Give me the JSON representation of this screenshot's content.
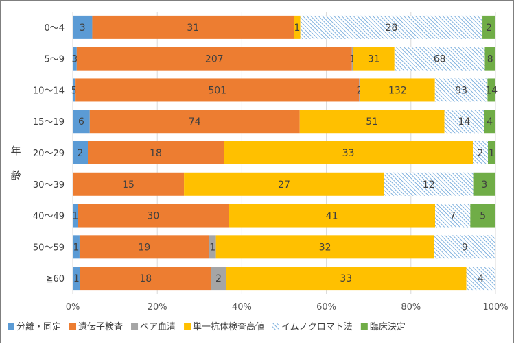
{
  "chart_data": {
    "type": "bar",
    "orientation": "horizontal",
    "stacked": "percent",
    "title": "",
    "ylabel": "年齢",
    "xlabel": "",
    "xlim": [
      0,
      100
    ],
    "xticks": [
      "0%",
      "20%",
      "40%",
      "60%",
      "80%",
      "100%"
    ],
    "categories": [
      "0〜4",
      "5〜9",
      "10〜14",
      "15〜19",
      "20〜29",
      "30〜39",
      "40〜49",
      "50〜59",
      "≧60"
    ],
    "legend_position": "bottom",
    "gridlines": "vertical",
    "series": [
      {
        "name": "分離・同定",
        "color": "#5b9bd5",
        "pattern": "solid",
        "values": [
          3,
          3,
          5,
          6,
          2,
          0,
          1,
          1,
          1
        ]
      },
      {
        "name": "遺伝子検査",
        "color": "#ed7d31",
        "pattern": "solid",
        "values": [
          31,
          207,
          501,
          74,
          18,
          15,
          30,
          19,
          18
        ]
      },
      {
        "name": "ペア血清",
        "color": "#a5a5a5",
        "pattern": "solid",
        "values": [
          0,
          1,
          2,
          0,
          0,
          0,
          0,
          1,
          2
        ]
      },
      {
        "name": "単一抗体検査高値",
        "color": "#ffc000",
        "pattern": "solid",
        "values": [
          1,
          31,
          132,
          51,
          33,
          27,
          41,
          32,
          33
        ]
      },
      {
        "name": "イムノクロマト法",
        "color": "#5b9bd5",
        "pattern": "hatch",
        "values": [
          28,
          68,
          93,
          14,
          2,
          12,
          7,
          9,
          4
        ]
      },
      {
        "name": "臨床決定",
        "color": "#70ad47",
        "pattern": "solid",
        "values": [
          2,
          8,
          14,
          4,
          1,
          3,
          5,
          0,
          0
        ]
      }
    ]
  }
}
